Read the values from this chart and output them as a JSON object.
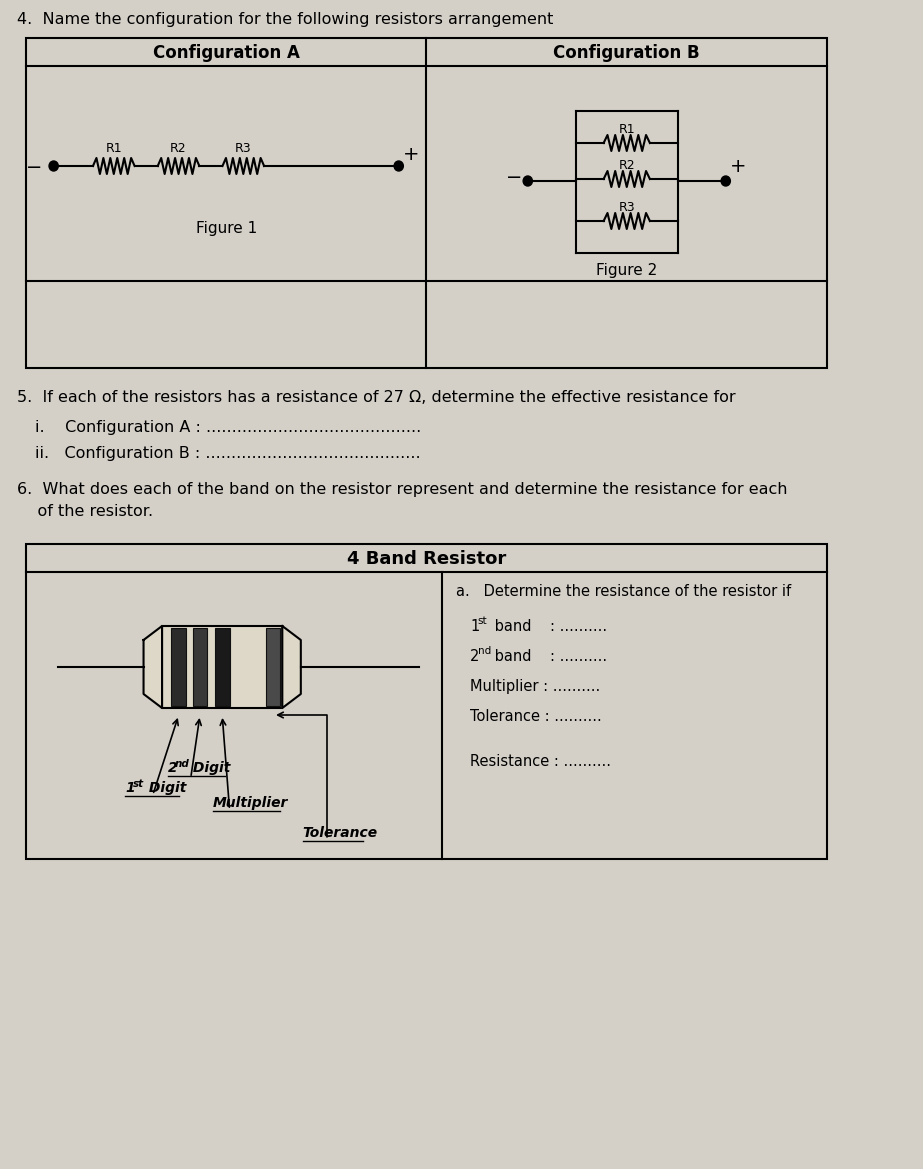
{
  "bg_color": "#d4d0c8",
  "white": "#ffffff",
  "black": "#000000",
  "dark_gray": "#555555",
  "title4": "4.  Name the configuration for the following resistors arrangement",
  "config_a_title": "Configuration A",
  "config_b_title": "Configuration B",
  "fig1_label": "Figure 1",
  "fig2_label": "Figure 2",
  "q5_text": "5.  If each of the resistors has a resistance of 27 Ω, determine the effective resistance for",
  "q5i": "i.    Configuration A : ..........................................",
  "q5ii": "ii.   Configuration B : ..........................................",
  "q6_line1": "6.  What does each of the band on the resistor represent and determine the resistance for each",
  "q6_line2": "    of the resistor.",
  "band_title": "4 Band Resistor",
  "band_a_label": "a.   Determine the resistance of the resistor if",
  "digit1_label": "1st Digit",
  "digit2_label": "2nd Digit",
  "mult_label": "Multiplier",
  "tol_label": "Tolerance"
}
